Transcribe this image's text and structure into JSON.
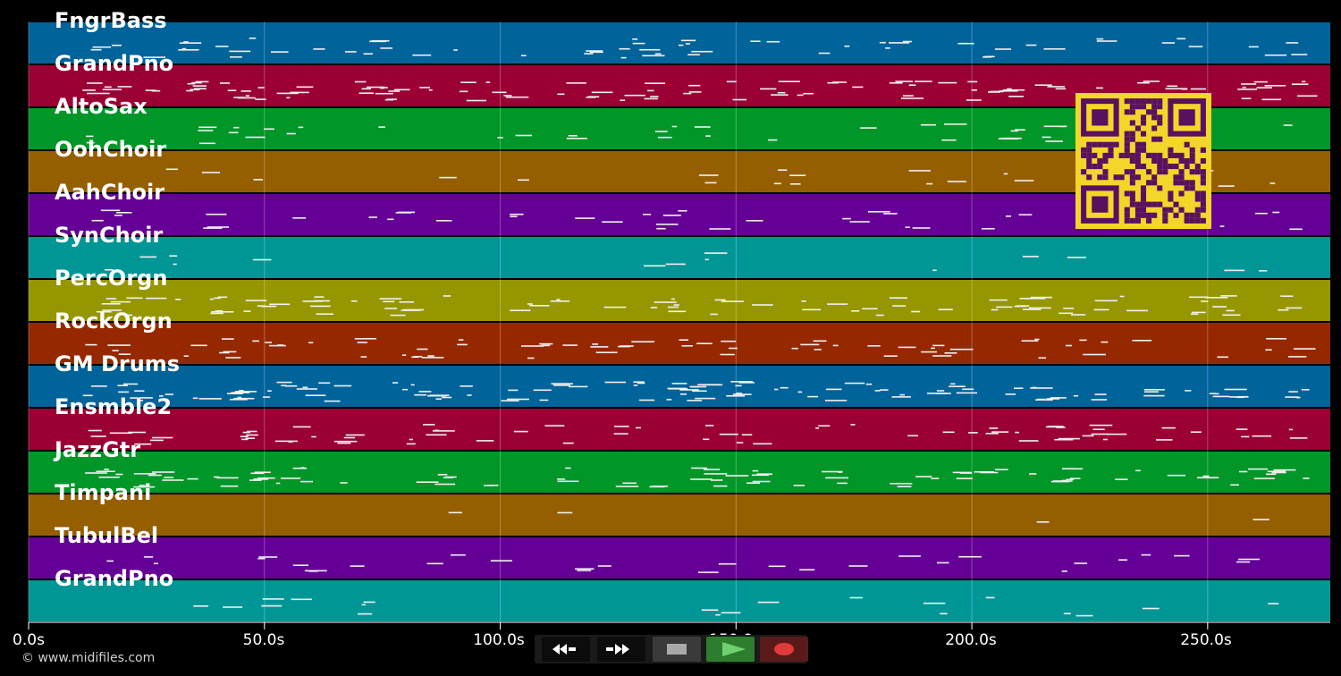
{
  "tracks": [
    {
      "name": "FngrBass",
      "color": "#00639a"
    },
    {
      "name": "GrandPno",
      "color": "#9a0033"
    },
    {
      "name": "AltoSax",
      "color": "#009628"
    },
    {
      "name": "OohChoir",
      "color": "#955f00"
    },
    {
      "name": "AahChoir",
      "color": "#640096"
    },
    {
      "name": "SynChoir",
      "color": "#009696"
    },
    {
      "name": "PercOrgn",
      "color": "#969600"
    },
    {
      "name": "RockOrgn",
      "color": "#962800"
    },
    {
      "name": "GM Drums",
      "color": "#00639a"
    },
    {
      "name": "Ensmble2",
      "color": "#9a0033"
    },
    {
      "name": "JazzGtr",
      "color": "#009628"
    },
    {
      "name": "Timpani",
      "color": "#955f00"
    },
    {
      "name": "TubulBel",
      "color": "#640096"
    },
    {
      "name": "GrandPno",
      "color": "#009696"
    }
  ],
  "time_axis": {
    "ticks": [
      "0.0s",
      "50.0s",
      "100.0s",
      "150.0s",
      "200.0s",
      "250.0s"
    ],
    "tick_values": [
      0,
      50,
      100,
      150,
      200,
      250
    ],
    "max_seconds": 276
  },
  "copyright": "© www.midifiles.com",
  "transport": {
    "rewind_icon": "rewind-icon",
    "forward_icon": "fast-forward-icon",
    "stop_icon": "stop-icon",
    "play_icon": "play-icon",
    "record_icon": "record-icon"
  },
  "qr_icon": "qr-code-icon"
}
